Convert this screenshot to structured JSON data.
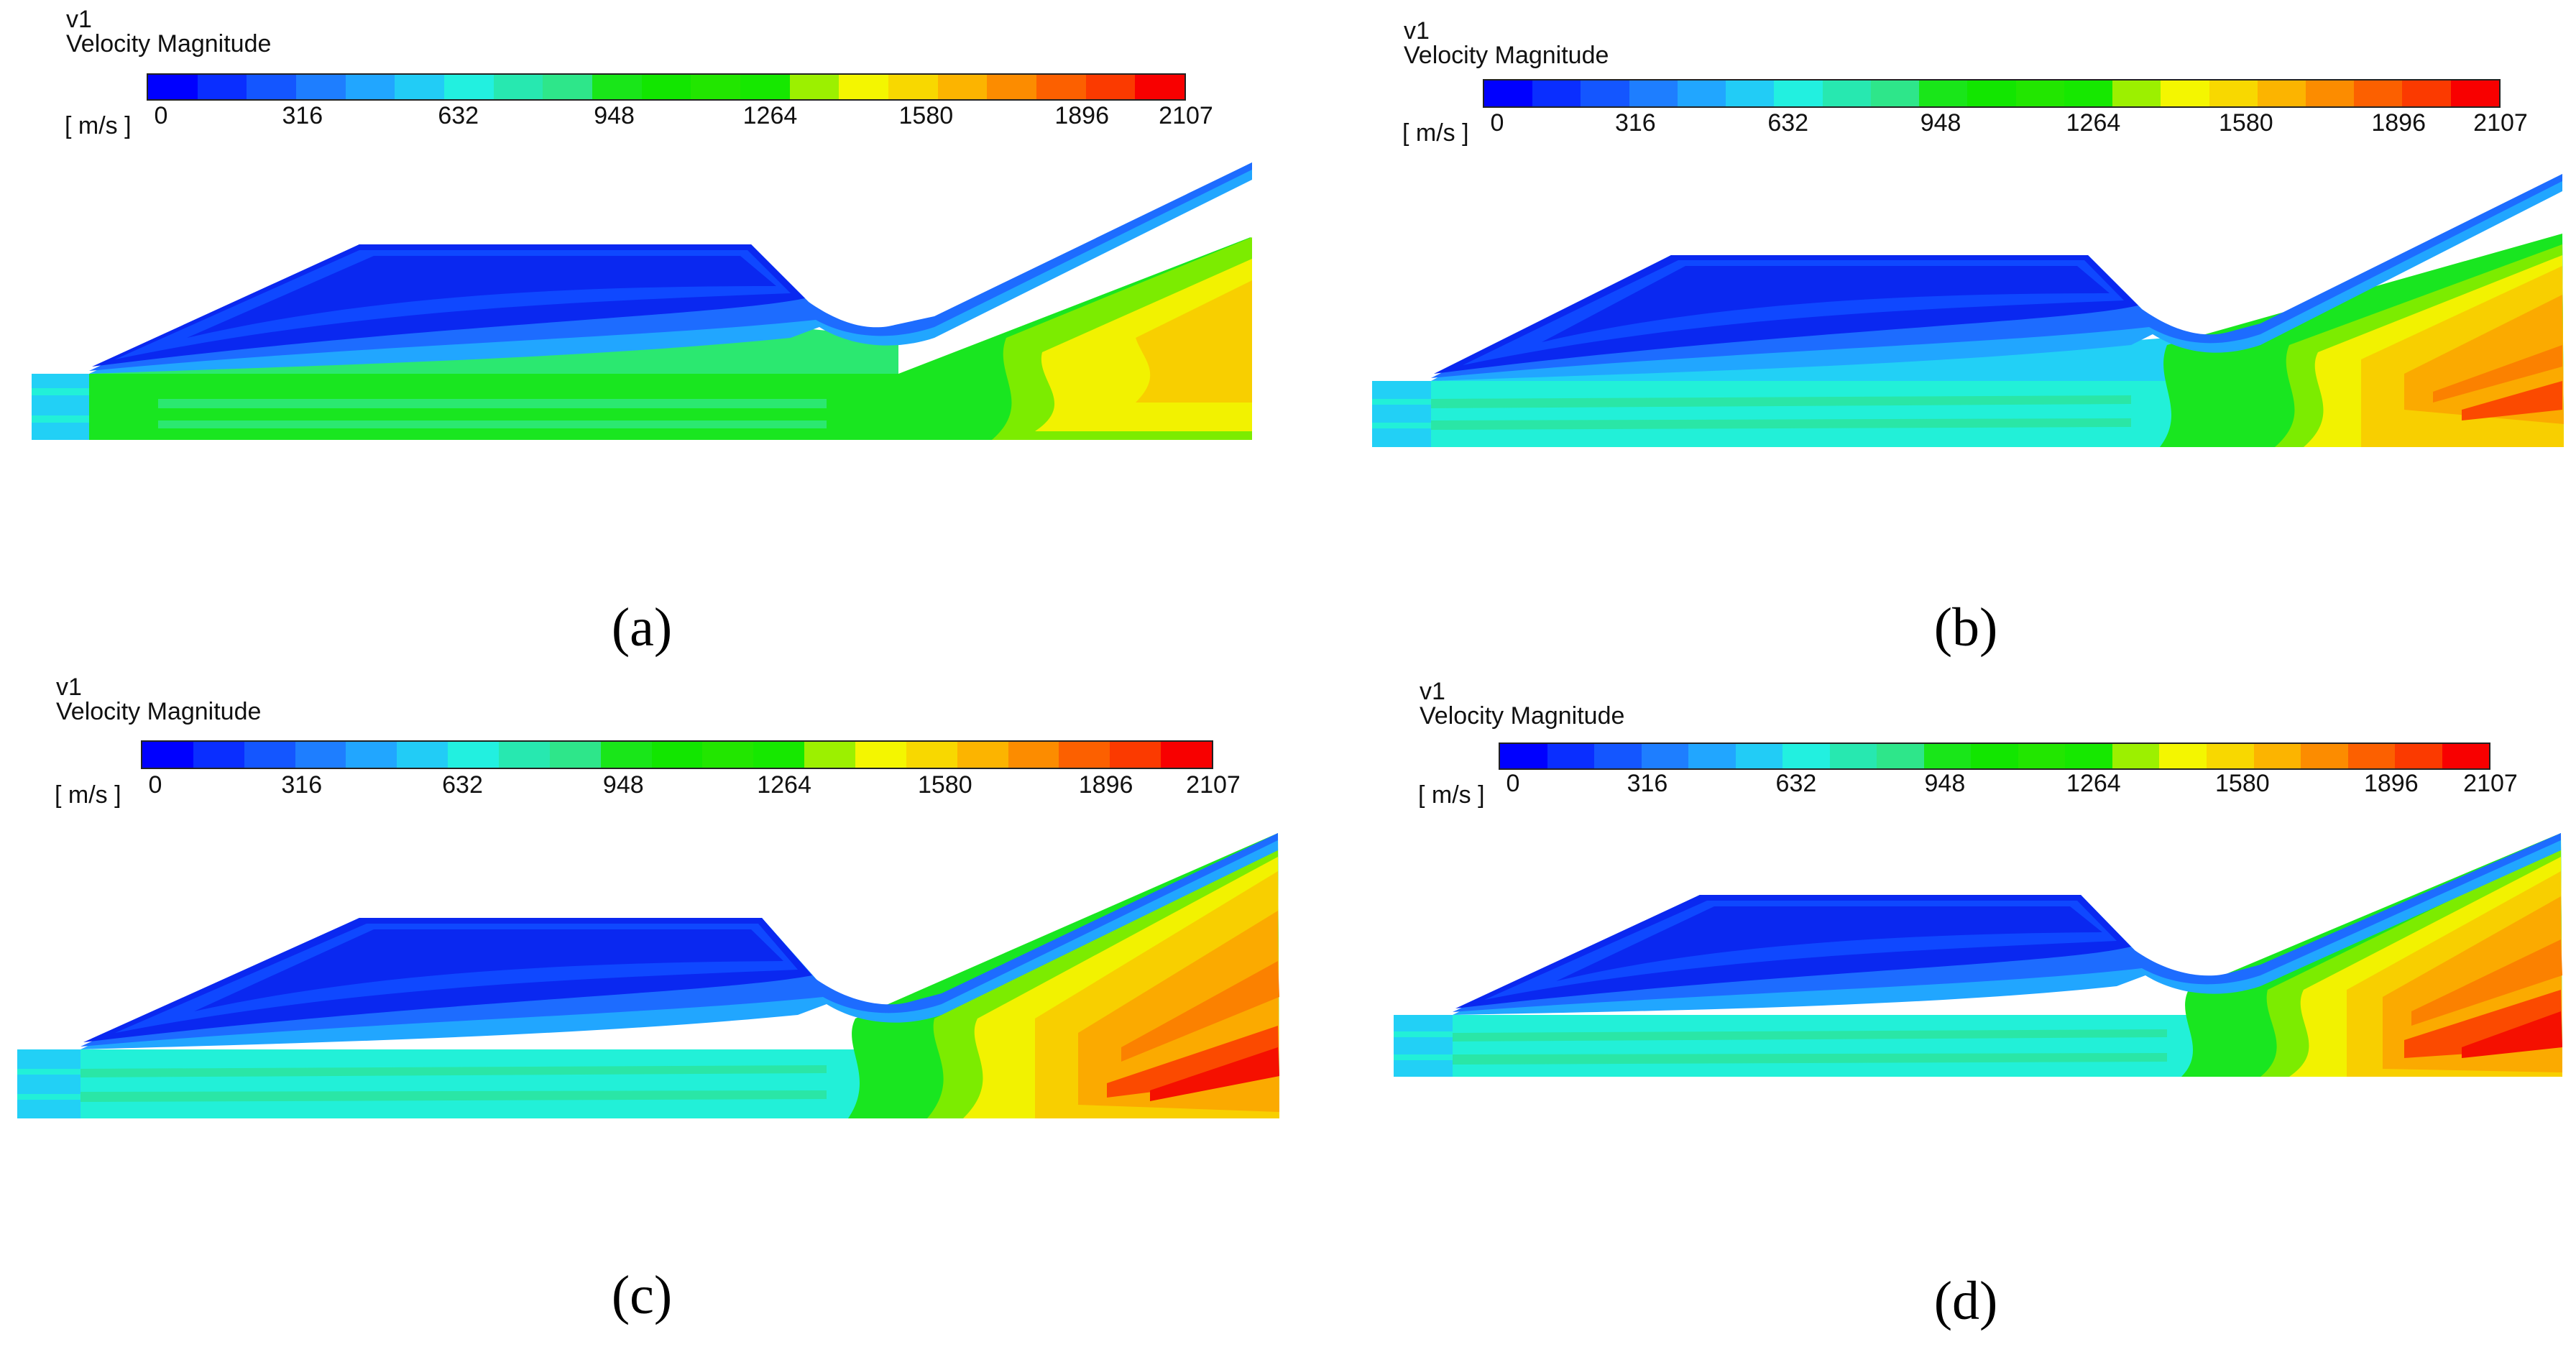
{
  "colorbar": {
    "variable": "v1",
    "title": "Velocity Magnitude",
    "unit": "[ m/s ]",
    "ticks": [
      "0",
      "316",
      "632",
      "948",
      "1264",
      "1580",
      "1896",
      "2107"
    ],
    "colors": [
      "#0000ff",
      "#0a2eff",
      "#1456ff",
      "#1e7eff",
      "#21a6ff",
      "#22ccf6",
      "#22f0e0",
      "#27e8b0",
      "#2ee68a",
      "#19e619",
      "#12e600",
      "#22e600",
      "#16e800",
      "#9cf000",
      "#f4f600",
      "#f8d800",
      "#fcb400",
      "#fc8c00",
      "#fc6000",
      "#fb3a00",
      "#f80000"
    ]
  },
  "field_colors": {
    "blue": "#0a28f0",
    "blue2": "#0f48ff",
    "blue3": "#1d6cff",
    "blue4": "#21a6ff",
    "cyan": "#22d0f6",
    "aqua": "#22f0d8",
    "teal": "#2ae6a6",
    "spring": "#2be870",
    "green": "#19e620",
    "lime": "#7cec00",
    "yellow": "#f2f200",
    "gold": "#f8cf00",
    "orange": "#fbaa00",
    "dark_orange": "#fb8100",
    "red_orange": "#fb4a00",
    "red": "#f51000"
  },
  "panels": [
    {
      "id": "a",
      "caption": "(a)"
    },
    {
      "id": "b",
      "caption": "(b)"
    },
    {
      "id": "c",
      "caption": "(c)"
    },
    {
      "id": "d",
      "caption": "(d)"
    }
  ]
}
